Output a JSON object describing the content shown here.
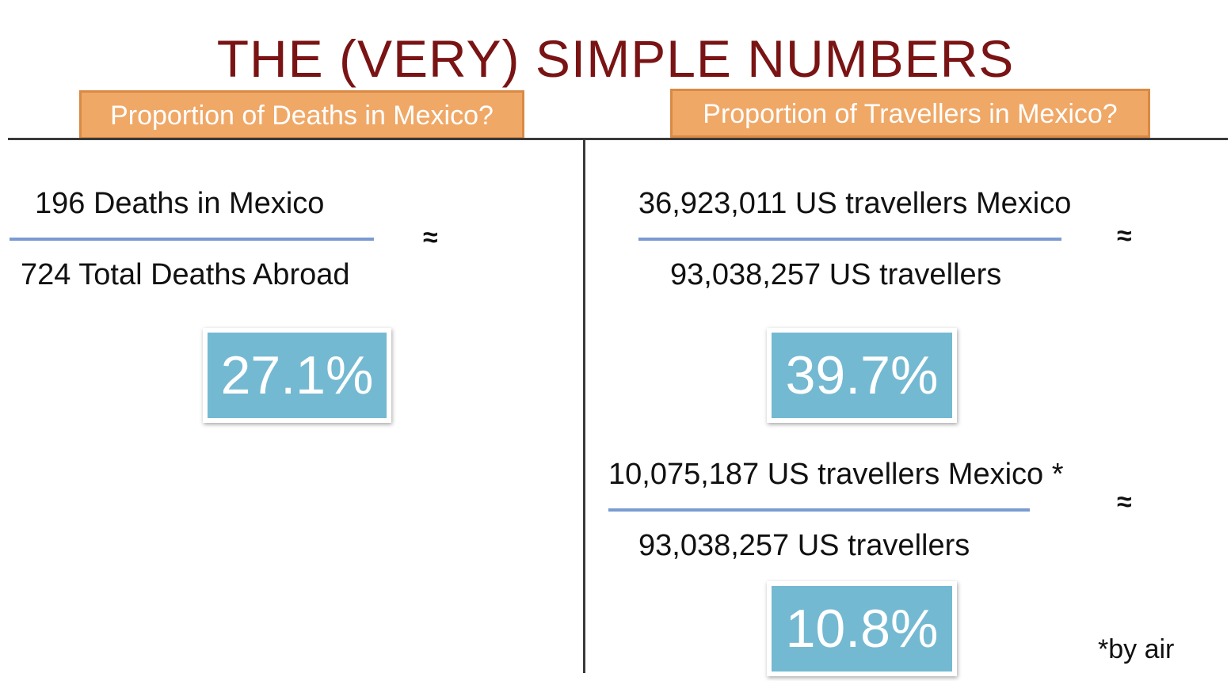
{
  "title": "THE (VERY) SIMPLE NUMBERS",
  "left": {
    "header": "Proportion of Deaths in Mexico?",
    "numerator": "196 Deaths in Mexico",
    "denominator": "724 Total Deaths Abroad",
    "approx": "≈",
    "result": "27.1%"
  },
  "right": {
    "header": "Proportion of Travellers in Mexico?",
    "calc1": {
      "numerator": "36,923,011 US travellers Mexico",
      "denominator": "93,038,257 US travellers",
      "approx": "≈",
      "result": "39.7%"
    },
    "calc2": {
      "numerator": "10,075,187 US travellers Mexico *",
      "denominator": "93,038,257 US travellers",
      "approx": "≈",
      "result": "10.8%"
    },
    "footnote": "*by air"
  },
  "colors": {
    "title": "#7a1414",
    "header_fill": "#f0a867",
    "header_border": "#d98a45",
    "fraction_line": "#7a9bd1",
    "result_fill": "#74b9d2"
  }
}
